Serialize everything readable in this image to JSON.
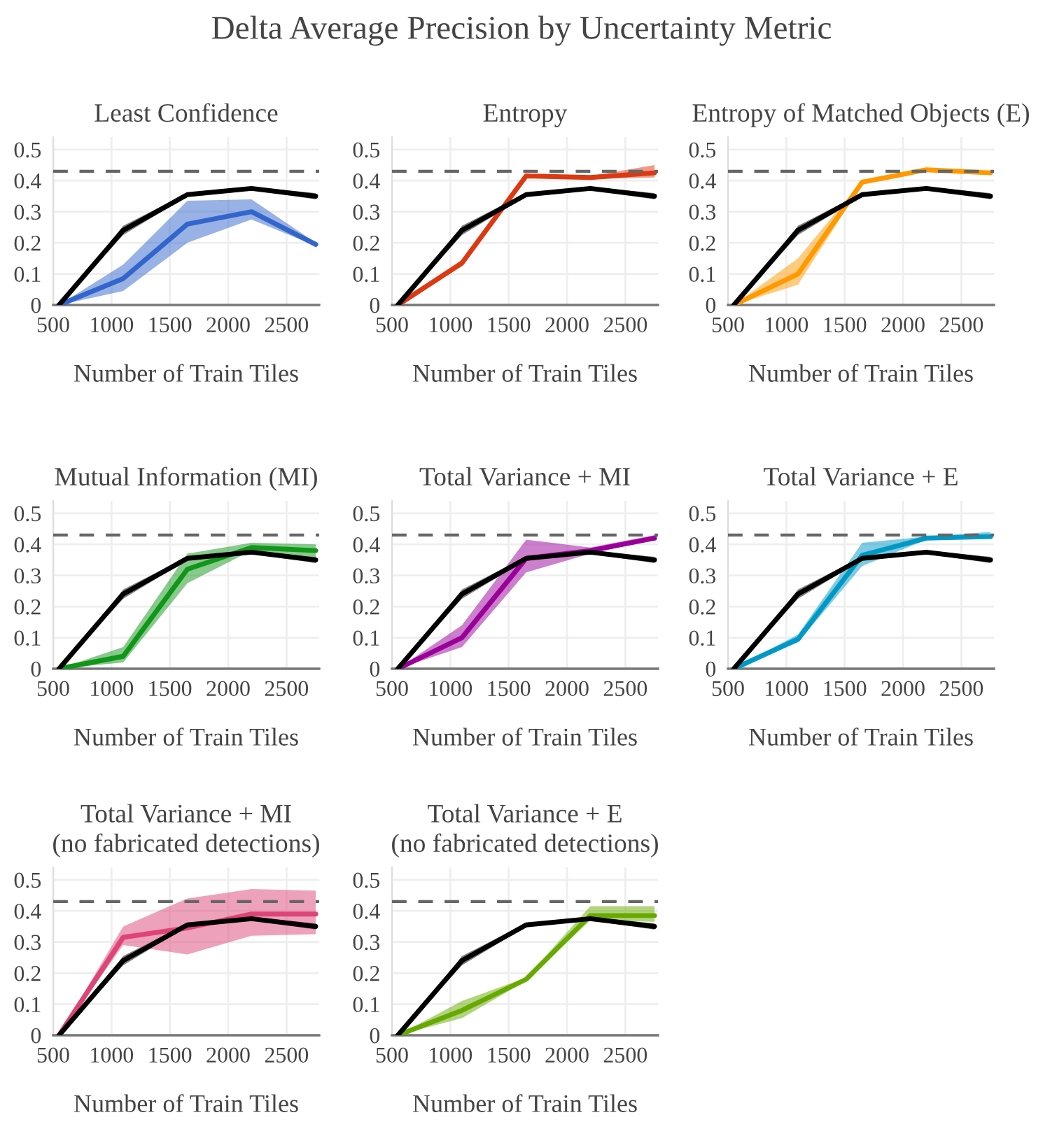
{
  "chart_data": [
    {
      "type": "other",
      "title": "Delta Average Precision by Uncertainty Metric"
    },
    {
      "type": "line",
      "title": "Least Confidence",
      "xlabel": "Number of Train Tiles",
      "x": [
        550,
        1100,
        1650,
        2200,
        2750
      ],
      "xlim": [
        500,
        2780
      ],
      "xticks": [
        500,
        1000,
        1500,
        2000,
        2500
      ],
      "ylim": [
        0,
        0.54
      ],
      "yticks": [
        0,
        0.1,
        0.2,
        0.3,
        0.4,
        0.5
      ],
      "grid": true,
      "ref_lines": [
        {
          "axis": "y",
          "value": 0.43,
          "color": "#666666",
          "line_style": "dashed"
        }
      ],
      "series": [
        {
          "color": "#000000",
          "values": [
            0,
            0.24,
            0.355,
            0.375,
            0.35
          ],
          "lower": [
            0,
            0.225,
            0.35,
            0.37,
            0.34
          ],
          "upper": [
            0,
            0.255,
            0.36,
            0.38,
            0.36
          ]
        },
        {
          "color": "#3366cc",
          "values": [
            0,
            0.085,
            0.26,
            0.3,
            0.195
          ],
          "lower": [
            0,
            0.045,
            0.2,
            0.275,
            0.19
          ],
          "upper": [
            0,
            0.13,
            0.335,
            0.34,
            0.2
          ]
        }
      ]
    },
    {
      "type": "line",
      "title": "Entropy",
      "xlabel": "Number of Train Tiles",
      "x": [
        550,
        1100,
        1650,
        2200,
        2750
      ],
      "xlim": [
        500,
        2780
      ],
      "xticks": [
        500,
        1000,
        1500,
        2000,
        2500
      ],
      "ylim": [
        0,
        0.54
      ],
      "yticks": [
        0,
        0.1,
        0.2,
        0.3,
        0.4,
        0.5
      ],
      "grid": true,
      "ref_lines": [
        {
          "axis": "y",
          "value": 0.43,
          "color": "#666666",
          "line_style": "dashed"
        }
      ],
      "series": [
        {
          "color": "#000000",
          "values": [
            0,
            0.24,
            0.355,
            0.375,
            0.35
          ],
          "lower": [
            0,
            0.225,
            0.35,
            0.37,
            0.34
          ],
          "upper": [
            0,
            0.255,
            0.36,
            0.38,
            0.36
          ]
        },
        {
          "color": "#dc3912",
          "values": [
            0,
            0.135,
            0.415,
            0.41,
            0.425
          ],
          "lower": [
            0,
            0.125,
            0.41,
            0.405,
            0.41
          ],
          "upper": [
            0,
            0.145,
            0.42,
            0.415,
            0.45
          ]
        }
      ]
    },
    {
      "type": "line",
      "title": "Entropy of Matched Objects (E)",
      "xlabel": "Number of Train Tiles",
      "x": [
        550,
        1100,
        1650,
        2200,
        2750
      ],
      "xlim": [
        500,
        2780
      ],
      "xticks": [
        500,
        1000,
        1500,
        2000,
        2500
      ],
      "ylim": [
        0,
        0.54
      ],
      "yticks": [
        0,
        0.1,
        0.2,
        0.3,
        0.4,
        0.5
      ],
      "grid": true,
      "ref_lines": [
        {
          "axis": "y",
          "value": 0.43,
          "color": "#666666",
          "line_style": "dashed"
        }
      ],
      "series": [
        {
          "color": "#000000",
          "values": [
            0,
            0.24,
            0.355,
            0.375,
            0.35
          ],
          "lower": [
            0,
            0.225,
            0.35,
            0.37,
            0.34
          ],
          "upper": [
            0,
            0.255,
            0.36,
            0.38,
            0.36
          ]
        },
        {
          "color": "#ff9900",
          "values": [
            0,
            0.1,
            0.395,
            0.435,
            0.425
          ],
          "lower": [
            0,
            0.065,
            0.39,
            0.43,
            0.42
          ],
          "upper": [
            0,
            0.15,
            0.4,
            0.44,
            0.43
          ]
        }
      ]
    },
    {
      "type": "line",
      "title": "Mutual Information (MI)",
      "xlabel": "Number of Train Tiles",
      "x": [
        550,
        1100,
        1650,
        2200,
        2750
      ],
      "xlim": [
        500,
        2780
      ],
      "xticks": [
        500,
        1000,
        1500,
        2000,
        2500
      ],
      "ylim": [
        0,
        0.54
      ],
      "yticks": [
        0,
        0.1,
        0.2,
        0.3,
        0.4,
        0.5
      ],
      "grid": true,
      "ref_lines": [
        {
          "axis": "y",
          "value": 0.43,
          "color": "#666666",
          "line_style": "dashed"
        }
      ],
      "series": [
        {
          "color": "#000000",
          "values": [
            0,
            0.24,
            0.355,
            0.375,
            0.35
          ],
          "lower": [
            0,
            0.225,
            0.35,
            0.37,
            0.34
          ],
          "upper": [
            0,
            0.255,
            0.36,
            0.38,
            0.36
          ]
        },
        {
          "color": "#109618",
          "values": [
            0,
            0.04,
            0.32,
            0.39,
            0.38
          ],
          "lower": [
            0,
            0.02,
            0.275,
            0.38,
            0.36
          ],
          "upper": [
            0,
            0.07,
            0.37,
            0.405,
            0.4
          ]
        }
      ]
    },
    {
      "type": "line",
      "title": "Total Variance + MI",
      "xlabel": "Number of Train Tiles",
      "x": [
        550,
        1100,
        1650,
        2200,
        2750
      ],
      "xlim": [
        500,
        2780
      ],
      "xticks": [
        500,
        1000,
        1500,
        2000,
        2500
      ],
      "ylim": [
        0,
        0.54
      ],
      "yticks": [
        0,
        0.1,
        0.2,
        0.3,
        0.4,
        0.5
      ],
      "grid": true,
      "ref_lines": [
        {
          "axis": "y",
          "value": 0.43,
          "color": "#666666",
          "line_style": "dashed"
        }
      ],
      "series": [
        {
          "color": "#000000",
          "values": [
            0,
            0.24,
            0.355,
            0.375,
            0.35
          ],
          "lower": [
            0,
            0.225,
            0.35,
            0.37,
            0.34
          ],
          "upper": [
            0,
            0.255,
            0.36,
            0.38,
            0.36
          ]
        },
        {
          "color": "#990099",
          "values": [
            0,
            0.1,
            0.355,
            0.38,
            0.42
          ],
          "lower": [
            0,
            0.07,
            0.31,
            0.37,
            0.415
          ],
          "upper": [
            0,
            0.14,
            0.415,
            0.39,
            0.43
          ]
        }
      ]
    },
    {
      "type": "line",
      "title": "Total Variance + E",
      "xlabel": "Number of Train Tiles",
      "x": [
        550,
        1100,
        1650,
        2200,
        2750
      ],
      "xlim": [
        500,
        2780
      ],
      "xticks": [
        500,
        1000,
        1500,
        2000,
        2500
      ],
      "ylim": [
        0,
        0.54
      ],
      "yticks": [
        0,
        0.1,
        0.2,
        0.3,
        0.4,
        0.5
      ],
      "grid": true,
      "ref_lines": [
        {
          "axis": "y",
          "value": 0.43,
          "color": "#666666",
          "line_style": "dashed"
        }
      ],
      "series": [
        {
          "color": "#000000",
          "values": [
            0,
            0.24,
            0.355,
            0.375,
            0.35
          ],
          "lower": [
            0,
            0.225,
            0.35,
            0.37,
            0.34
          ],
          "upper": [
            0,
            0.255,
            0.36,
            0.38,
            0.36
          ]
        },
        {
          "color": "#0099c6",
          "values": [
            0,
            0.095,
            0.365,
            0.42,
            0.425
          ],
          "lower": [
            0,
            0.085,
            0.33,
            0.415,
            0.42
          ],
          "upper": [
            0,
            0.11,
            0.405,
            0.425,
            0.44
          ]
        }
      ]
    },
    {
      "type": "line",
      "title": "Total Variance + MI\n(no fabricated detections)",
      "xlabel": "Number of Train Tiles",
      "x": [
        550,
        1100,
        1650,
        2200,
        2750
      ],
      "xlim": [
        500,
        2780
      ],
      "xticks": [
        500,
        1000,
        1500,
        2000,
        2500
      ],
      "ylim": [
        0,
        0.54
      ],
      "yticks": [
        0,
        0.1,
        0.2,
        0.3,
        0.4,
        0.5
      ],
      "grid": true,
      "ref_lines": [
        {
          "axis": "y",
          "value": 0.43,
          "color": "#666666",
          "line_style": "dashed"
        }
      ],
      "series": [
        {
          "color": "#000000",
          "values": [
            0,
            0.24,
            0.355,
            0.375,
            0.35
          ],
          "lower": [
            0,
            0.225,
            0.35,
            0.37,
            0.34
          ],
          "upper": [
            0,
            0.255,
            0.36,
            0.38,
            0.36
          ]
        },
        {
          "color": "#dd4477",
          "values": [
            0,
            0.315,
            0.345,
            0.39,
            0.39
          ],
          "lower": [
            0,
            0.29,
            0.26,
            0.32,
            0.325
          ],
          "upper": [
            0,
            0.35,
            0.44,
            0.47,
            0.465
          ]
        }
      ]
    },
    {
      "type": "line",
      "title": "Total Variance + E\n(no fabricated detections)",
      "xlabel": "Number of Train Tiles",
      "x": [
        550,
        1100,
        1650,
        2200,
        2750
      ],
      "xlim": [
        500,
        2780
      ],
      "xticks": [
        500,
        1000,
        1500,
        2000,
        2500
      ],
      "ylim": [
        0,
        0.54
      ],
      "yticks": [
        0,
        0.1,
        0.2,
        0.3,
        0.4,
        0.5
      ],
      "grid": true,
      "ref_lines": [
        {
          "axis": "y",
          "value": 0.43,
          "color": "#666666",
          "line_style": "dashed"
        }
      ],
      "series": [
        {
          "color": "#000000",
          "values": [
            0,
            0.24,
            0.355,
            0.375,
            0.35
          ],
          "lower": [
            0,
            0.225,
            0.35,
            0.37,
            0.34
          ],
          "upper": [
            0,
            0.255,
            0.36,
            0.38,
            0.36
          ]
        },
        {
          "color": "#66aa00",
          "values": [
            0,
            0.08,
            0.18,
            0.385,
            0.385
          ],
          "lower": [
            0,
            0.055,
            0.175,
            0.37,
            0.365
          ],
          "upper": [
            0,
            0.11,
            0.185,
            0.415,
            0.415
          ]
        }
      ]
    }
  ]
}
